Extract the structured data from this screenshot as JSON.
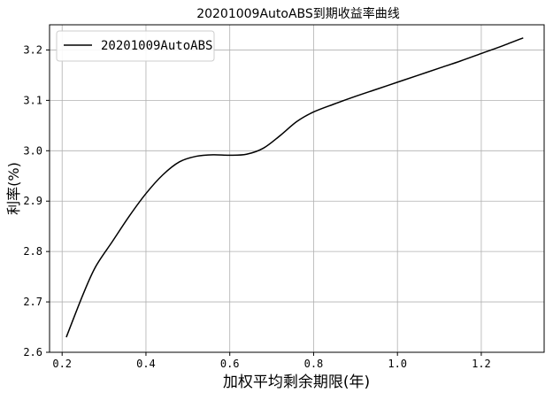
{
  "chart_data": {
    "type": "line",
    "title": "20201009AutoABS到期收益率曲线",
    "xlabel": "加权平均剩余期限(年)",
    "ylabel": "利率(%)",
    "xlim": [
      0.17,
      1.35
    ],
    "ylim": [
      2.6,
      3.25
    ],
    "xticks": [
      "0.2",
      "0.4",
      "0.6",
      "0.8",
      "1.0",
      "1.2"
    ],
    "yticks": [
      "2.6",
      "2.7",
      "2.8",
      "2.9",
      "3.0",
      "3.1",
      "3.2"
    ],
    "grid": true,
    "legend": "top-left",
    "line_color": "#000000",
    "series": [
      {
        "name": "20201009AutoABS",
        "x": [
          0.21,
          0.25,
          0.28,
          0.32,
          0.36,
          0.4,
          0.44,
          0.48,
          0.52,
          0.56,
          0.6,
          0.64,
          0.68,
          0.72,
          0.76,
          0.8,
          0.85,
          0.9,
          0.95,
          1.0,
          1.05,
          1.1,
          1.15,
          1.2,
          1.25,
          1.3
        ],
        "y": [
          2.63,
          2.715,
          2.77,
          2.82,
          2.87,
          2.915,
          2.952,
          2.978,
          2.989,
          2.992,
          2.991,
          2.993,
          3.005,
          3.03,
          3.058,
          3.077,
          3.093,
          3.108,
          3.122,
          3.136,
          3.15,
          3.164,
          3.178,
          3.193,
          3.208,
          3.224
        ]
      }
    ]
  }
}
